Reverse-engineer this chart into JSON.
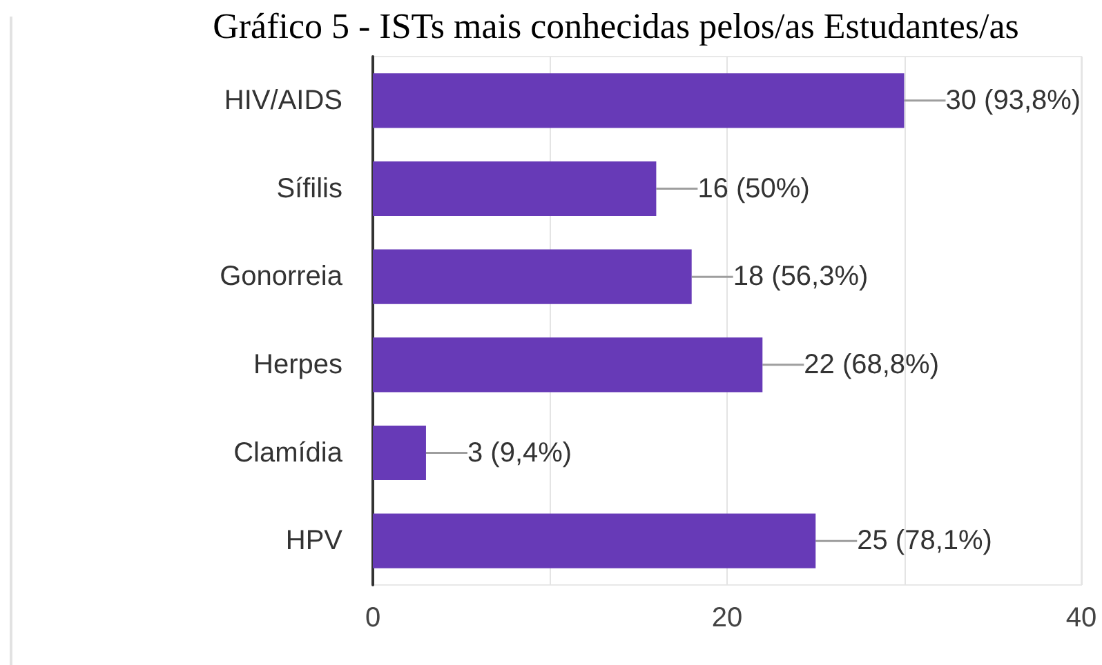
{
  "chart_data": {
    "type": "bar",
    "orientation": "horizontal",
    "title": "Gráfico 5 - ISTs mais conhecidas pelos/as Estudantes/as",
    "categories": [
      "HIV/AIDS",
      "Sífilis",
      "Gonorreia",
      "Herpes",
      "Clamídia",
      "HPV"
    ],
    "values": [
      30,
      16,
      18,
      22,
      3,
      25
    ],
    "value_labels": [
      "30 (93,8%)",
      "16 (50%)",
      "18 (56,3%)",
      "22 (68,8%)",
      "3 (9,4%)",
      "25 (78,1%)"
    ],
    "color": "#673ab7",
    "xlim": [
      0,
      40
    ],
    "xticks": [
      0,
      {
        "value": 10,
        "label": null
      },
      20,
      {
        "value": 30,
        "label": null
      },
      40
    ],
    "grid": "x"
  }
}
